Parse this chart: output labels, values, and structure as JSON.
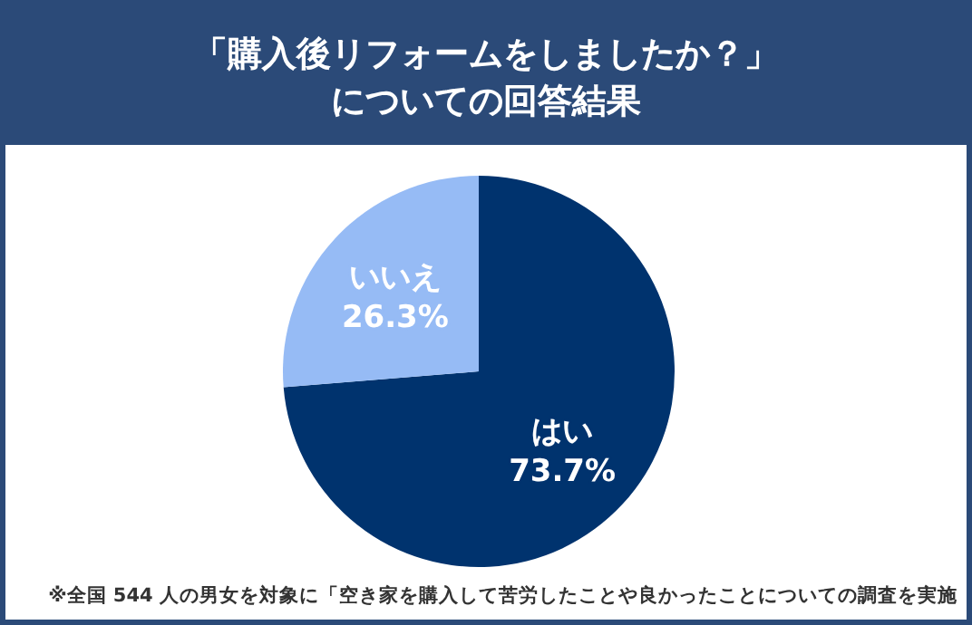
{
  "chart_data": {
    "type": "pie",
    "title": "「購入後リフォームをしましたか？」",
    "subtitle": "についての回答結果",
    "categories": [
      "はい",
      "いいえ"
    ],
    "values": [
      73.7,
      26.3
    ],
    "value_labels": [
      "73.7%",
      "26.3%"
    ],
    "colors": [
      "#00336e",
      "#96bbf5"
    ],
    "annotations": [
      "※全国 544 人の男女を対象に「空き家を購入して苦労したことや良かったことについての調査を実施"
    ]
  }
}
